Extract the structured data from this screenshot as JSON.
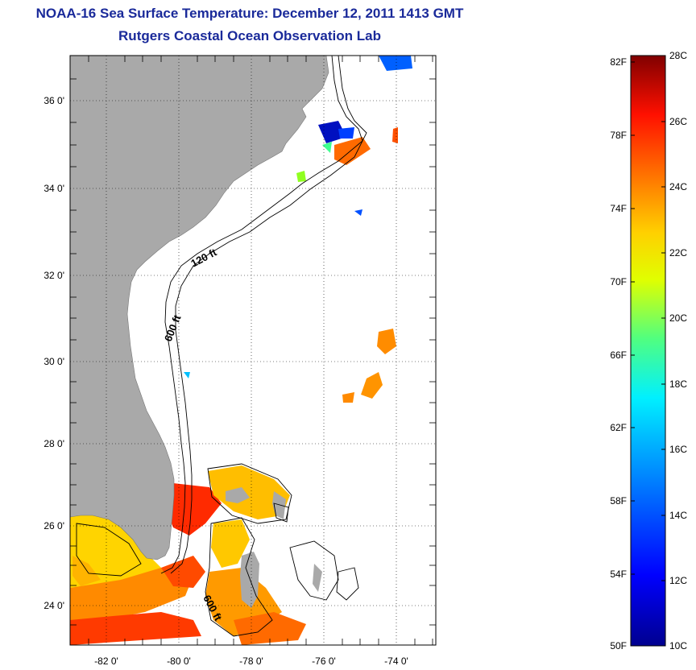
{
  "header": {
    "title": "NOAA-16 Sea Surface Temperature:  December 12, 2011 1413 GMT",
    "subtitle": "Rutgers Coastal Ocean Observation Lab"
  },
  "map": {
    "lat_labels": [
      "36 0'",
      "34 0'",
      "32 0'",
      "30 0'",
      "28 0'",
      "26 0'",
      "24 0'"
    ],
    "lon_labels": [
      "-82 0'",
      "-80 0'",
      "-78 0'",
      "-76 0'",
      "-74 0'"
    ],
    "contour_labels": {
      "shelf_120": "120 ft",
      "shelf_600": "600 ft",
      "bahamas_600": "600 ft"
    }
  },
  "colorbar": {
    "fahrenheit_labels": [
      "82F",
      "78F",
      "74F",
      "70F",
      "66F",
      "62F",
      "58F",
      "54F",
      "50F"
    ],
    "celsius_labels": [
      "28C",
      "26C",
      "24C",
      "22C",
      "20C",
      "18C",
      "16C",
      "14C",
      "12C",
      "10C"
    ],
    "range_celsius": [
      10,
      28
    ],
    "range_fahrenheit": [
      50,
      82
    ]
  },
  "colors": {
    "land": "#a9a9a9",
    "title": "#1a2a9a",
    "sst_warm": "#ff2a00",
    "sst_mid": "#ffb000",
    "sst_cool": "#0000ff"
  }
}
